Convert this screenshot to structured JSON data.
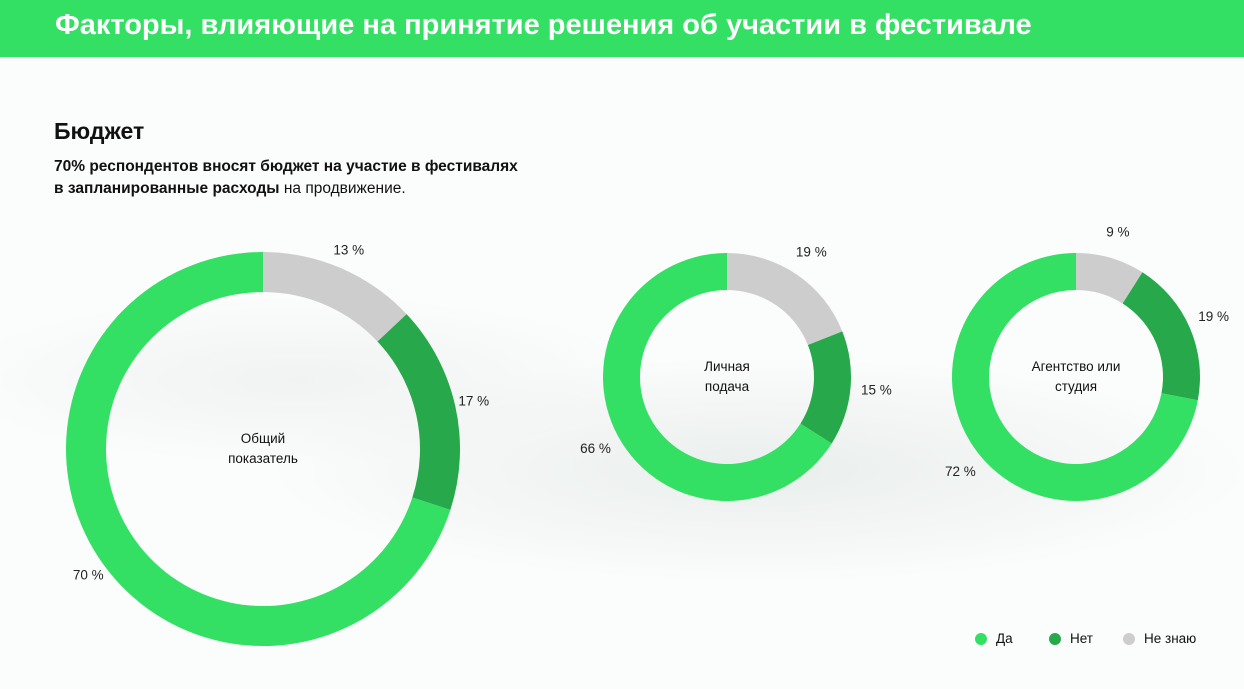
{
  "header": {
    "title": "Факторы, влияющие на принятие решения об участии в фестивале"
  },
  "section": {
    "title": "Бюджет",
    "bold_1": "70% респондентов вносят бюджет на участие в фестивалях",
    "bold_2": "в запланированные расходы",
    "regular": "на продвижение."
  },
  "legend": {
    "labels": [
      "Да",
      "Нет",
      "Не знаю"
    ],
    "colors": [
      "#33e063",
      "#27a84b",
      "#cdcdcd"
    ]
  },
  "chart_data": [
    {
      "type": "donut",
      "title": "Общий показатель",
      "values": [
        70,
        17,
        13
      ],
      "value_labels": [
        "70 %",
        "17 %",
        "13 %"
      ]
    },
    {
      "type": "donut",
      "title": "Личная подача",
      "values": [
        66,
        15,
        19
      ],
      "value_labels": [
        "66 %",
        "15 %",
        "19 %"
      ]
    },
    {
      "type": "donut",
      "title": "Агентство или студия",
      "values": [
        72,
        19,
        9
      ],
      "value_labels": [
        "72 %",
        "19 %",
        "9 %"
      ]
    }
  ]
}
